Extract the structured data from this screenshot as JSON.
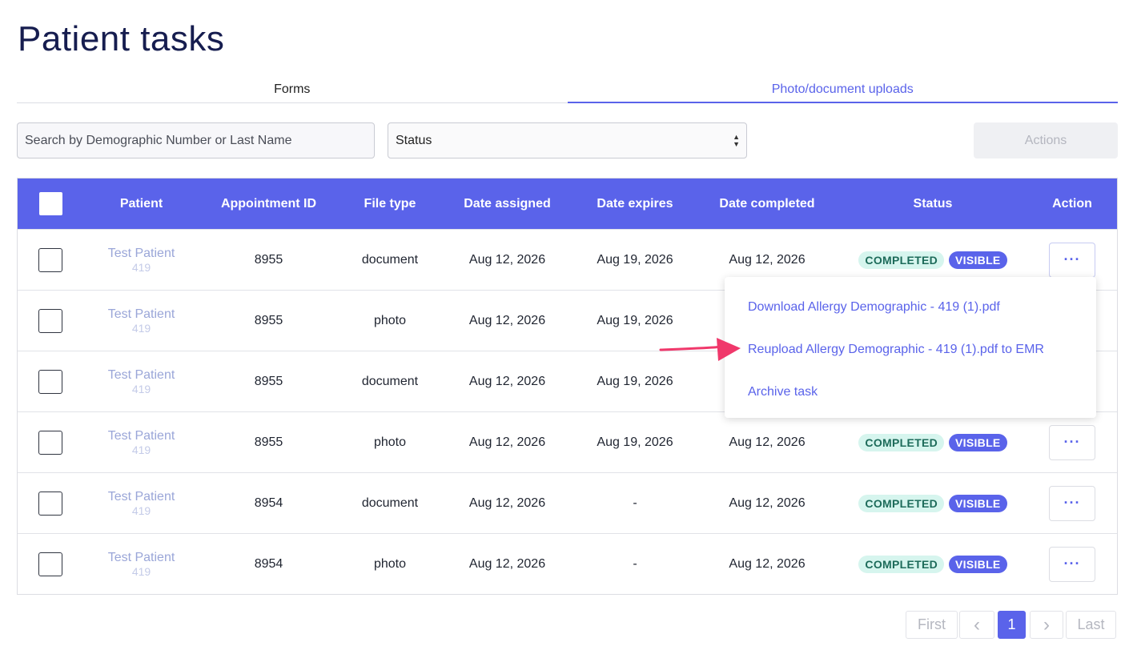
{
  "page": {
    "title": "Patient tasks"
  },
  "tabs": [
    {
      "label": "Forms",
      "active": false
    },
    {
      "label": "Photo/document uploads",
      "active": true
    }
  ],
  "filters": {
    "search_placeholder": "Search by Demographic Number or Last Name",
    "status_value": "Status",
    "actions_label": "Actions"
  },
  "table": {
    "headers": {
      "patient": "Patient",
      "appointment_id": "Appointment ID",
      "file_type": "File type",
      "date_assigned": "Date assigned",
      "date_expires": "Date expires",
      "date_completed": "Date completed",
      "status": "Status",
      "action": "Action"
    },
    "rows": [
      {
        "patient_name": "Test Patient",
        "patient_id": "419",
        "appointment_id": "8955",
        "file_type": "document",
        "date_assigned": "Aug 12, 2026",
        "date_expires": "Aug 19, 2026",
        "date_completed": "Aug 12, 2026",
        "status": "COMPLETED",
        "visibility": "VISIBLE",
        "action": "···"
      },
      {
        "patient_name": "Test Patient",
        "patient_id": "419",
        "appointment_id": "8955",
        "file_type": "photo",
        "date_assigned": "Aug 12, 2026",
        "date_expires": "Aug 19, 2026",
        "date_completed": "",
        "status": "",
        "visibility": "",
        "action": ""
      },
      {
        "patient_name": "Test Patient",
        "patient_id": "419",
        "appointment_id": "8955",
        "file_type": "document",
        "date_assigned": "Aug 12, 2026",
        "date_expires": "Aug 19, 2026",
        "date_completed": "",
        "status": "",
        "visibility": "",
        "action": ""
      },
      {
        "patient_name": "Test Patient",
        "patient_id": "419",
        "appointment_id": "8955",
        "file_type": "photo",
        "date_assigned": "Aug 12, 2026",
        "date_expires": "Aug 19, 2026",
        "date_completed": "Aug 12, 2026",
        "status": "COMPLETED",
        "visibility": "VISIBLE",
        "action": "···"
      },
      {
        "patient_name": "Test Patient",
        "patient_id": "419",
        "appointment_id": "8954",
        "file_type": "document",
        "date_assigned": "Aug 12, 2026",
        "date_expires": "-",
        "date_completed": "Aug 12, 2026",
        "status": "COMPLETED",
        "visibility": "VISIBLE",
        "action": "···"
      },
      {
        "patient_name": "Test Patient",
        "patient_id": "419",
        "appointment_id": "8954",
        "file_type": "photo",
        "date_assigned": "Aug 12, 2026",
        "date_expires": "-",
        "date_completed": "Aug 12, 2026",
        "status": "COMPLETED",
        "visibility": "VISIBLE",
        "action": "···"
      }
    ]
  },
  "dropdown": {
    "items": [
      "Download Allergy Demographic - 419 (1).pdf",
      "Reupload Allergy Demographic - 419 (1).pdf to EMR",
      "Archive task"
    ]
  },
  "pagination": {
    "first": "First",
    "prev": "‹",
    "current": "1",
    "next": "›",
    "last": "Last"
  },
  "colors": {
    "accent": "#5a63ea",
    "title": "#161d4f",
    "badge_completed_bg": "#d6f5ee",
    "badge_completed_text": "#1d6b5a",
    "annotation_arrow": "#f0386b"
  }
}
